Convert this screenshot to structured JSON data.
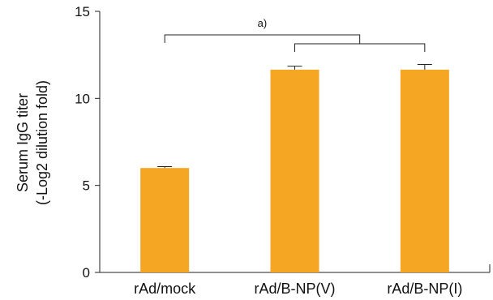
{
  "chart_data": {
    "type": "bar",
    "categories": [
      "rAd/mock",
      "rAd/B-NP(V)",
      "rAd/B-NP(I)"
    ],
    "values": [
      6.0,
      11.65,
      11.65
    ],
    "errors": [
      0.08,
      0.2,
      0.3
    ],
    "title": "",
    "xlabel": "",
    "ylabel_lines": [
      "Serum IgG titer",
      "(-Log2 dilution fold)"
    ],
    "ylim": [
      0,
      15
    ],
    "yticks": [
      0,
      5,
      10,
      15
    ],
    "grid": false,
    "bar_color": "#F5A623",
    "significance": [
      {
        "from": 0,
        "to_between": [
          1,
          2
        ],
        "label": "a)"
      }
    ]
  }
}
